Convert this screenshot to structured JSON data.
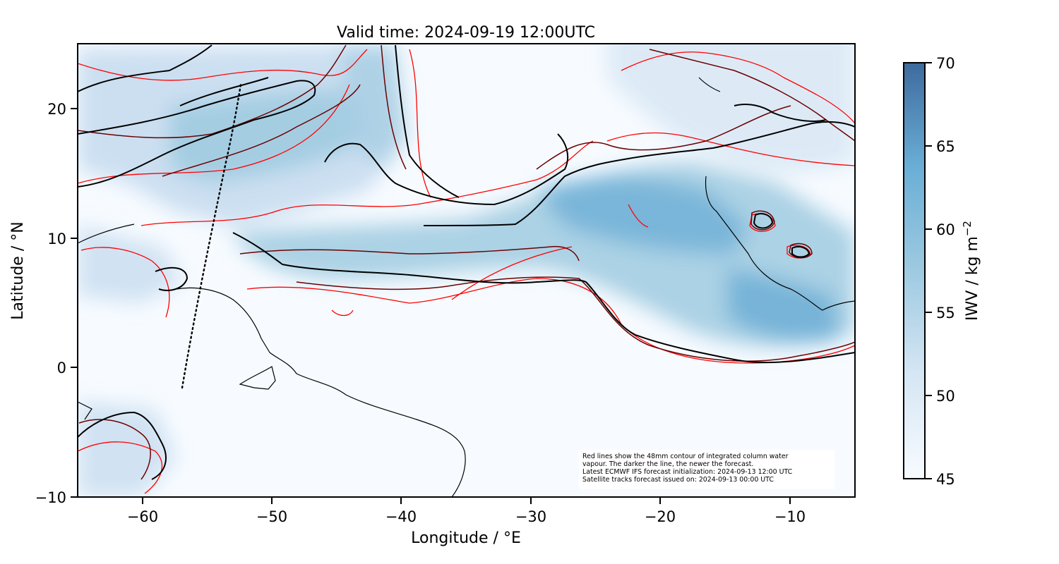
{
  "chart": {
    "title": "Valid time: 2024-09-19 12:00UTC",
    "xlabel": "Longitude / °E",
    "ylabel": "Latitude / °N",
    "x_ticks": [
      "−60",
      "−50",
      "−40",
      "−30",
      "−20",
      "−10"
    ],
    "y_ticks": [
      "20",
      "10",
      "0",
      "−10"
    ],
    "colorbar": {
      "label": "IWV / kg m",
      "label_sup": "−2",
      "ticks": [
        "70",
        "65",
        "60",
        "55",
        "50",
        "45"
      ],
      "color_low": "#f7fbff",
      "color_high": "#3e6a9e"
    }
  },
  "chart_data": {
    "type": "map",
    "extent_lon": [
      -65,
      -5
    ],
    "extent_lat": [
      -10,
      25
    ],
    "x_tick_values": [
      -60,
      -50,
      -40,
      -30,
      -20,
      -10
    ],
    "y_tick_values": [
      20,
      10,
      0,
      -10
    ],
    "colorbar_range": [
      45,
      70
    ],
    "colorbar_tick_values": [
      70,
      65,
      60,
      55,
      50,
      45
    ],
    "contour_level_mm": 48,
    "line_colors": [
      "#ff0000",
      "#b00000",
      "#5a0000",
      "#000000"
    ]
  },
  "annotation": {
    "lines": [
      "Red lines show the 48mm contour of integrated column water",
      "vapour. The darker the line, the newer the forecast.",
      "Latest ECMWF IFS forecast initialization: 2024-09-13 12:00 UTC",
      "Satellite tracks forecast issued on: 2024-09-13 00:00 UTC"
    ]
  }
}
